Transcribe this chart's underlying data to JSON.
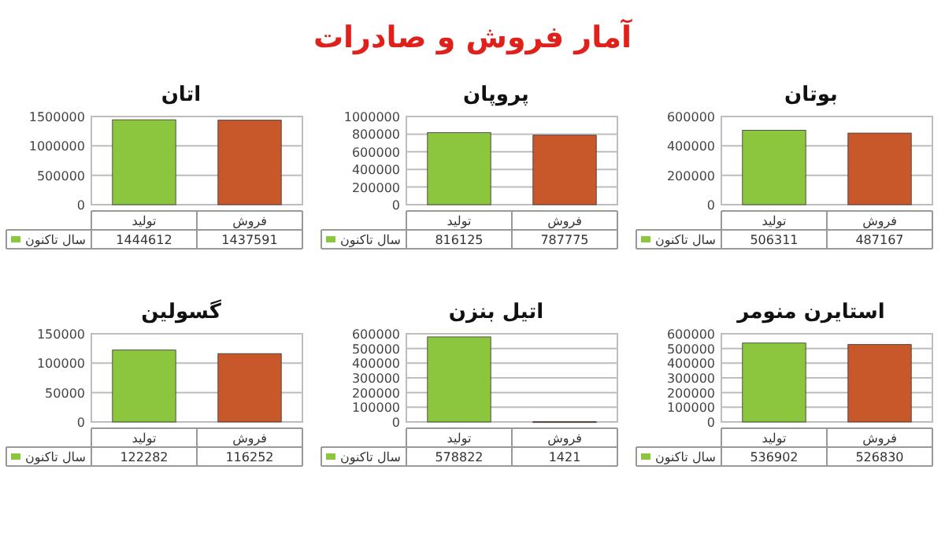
{
  "chart_data": [
    {
      "type": "bar",
      "title": "اتان",
      "annotations": [
        "آمار فروش و صادرات"
      ],
      "categories": [
        "تولید",
        "فروش"
      ],
      "series": [
        {
          "name": "سال تاکنون",
          "color": "#8cc63f",
          "colors": [
            "#8cc63f",
            "#c8582a"
          ],
          "values": [
            1444612,
            1437591
          ]
        }
      ],
      "ylim": [
        0,
        1500000
      ],
      "yticks": [
        0,
        500000,
        1000000,
        1500000
      ],
      "grid": "y",
      "data_labels": true,
      "legend": "bottom left"
    },
    {
      "type": "bar",
      "title": "پروپان",
      "categories": [
        "تولید",
        "فروش"
      ],
      "series": [
        {
          "name": "سال تاکنون",
          "color": "#8cc63f",
          "colors": [
            "#8cc63f",
            "#c8582a"
          ],
          "values": [
            816125,
            787775
          ]
        }
      ],
      "ylim": [
        0,
        1000000
      ],
      "yticks": [
        0,
        200000,
        400000,
        600000,
        800000,
        1000000
      ],
      "grid": "y",
      "data_labels": true,
      "legend": "bottom left"
    },
    {
      "type": "bar",
      "title": "بوتان",
      "categories": [
        "تولید",
        "فروش"
      ],
      "series": [
        {
          "name": "سال تاکنون",
          "color": "#8cc63f",
          "colors": [
            "#8cc63f",
            "#c8582a"
          ],
          "values": [
            506311,
            487167
          ]
        }
      ],
      "ylim": [
        0,
        600000
      ],
      "yticks": [
        0,
        200000,
        400000,
        600000
      ],
      "grid": "y",
      "data_labels": true,
      "legend": "bottom left"
    },
    {
      "type": "bar",
      "title": "گسولین",
      "categories": [
        "تولید",
        "فروش"
      ],
      "series": [
        {
          "name": "سال تاکنون",
          "color": "#8cc63f",
          "colors": [
            "#8cc63f",
            "#c8582a"
          ],
          "values": [
            122282,
            116252
          ]
        }
      ],
      "ylim": [
        0,
        150000
      ],
      "yticks": [
        0,
        50000,
        100000,
        150000
      ],
      "grid": "y",
      "data_labels": true,
      "legend": "bottom left"
    },
    {
      "type": "bar",
      "title": "اتیل بنزن",
      "categories": [
        "تولید",
        "فروش"
      ],
      "series": [
        {
          "name": "سال تاکنون",
          "color": "#8cc63f",
          "colors": [
            "#8cc63f",
            "#c8582a"
          ],
          "values": [
            578822,
            1421
          ]
        }
      ],
      "ylim": [
        0,
        600000
      ],
      "yticks": [
        0,
        100000,
        200000,
        300000,
        400000,
        500000,
        600000
      ],
      "grid": "y",
      "data_labels": true,
      "legend": "bottom left"
    },
    {
      "type": "bar",
      "title": "استایرن منومر",
      "categories": [
        "تولید",
        "فروش"
      ],
      "series": [
        {
          "name": "سال تاکنون",
          "color": "#8cc63f",
          "colors": [
            "#8cc63f",
            "#c8582a"
          ],
          "values": [
            536902,
            526830
          ]
        }
      ],
      "ylim": [
        0,
        600000
      ],
      "yticks": [
        0,
        100000,
        200000,
        300000,
        400000,
        500000,
        600000
      ],
      "grid": "y",
      "data_labels": true,
      "legend": "bottom left"
    }
  ]
}
